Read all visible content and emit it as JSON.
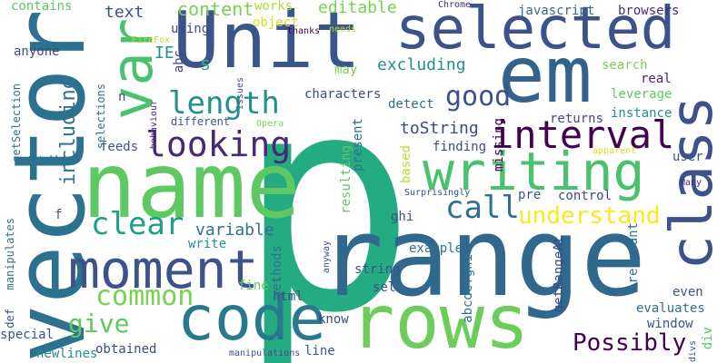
{
  "words": [
    {
      "text": "p",
      "color": "#25ab82"
    },
    {
      "text": "range",
      "color": "#31688e"
    },
    {
      "text": "Unit",
      "color": "#3a548c"
    },
    {
      "text": "selected",
      "color": "#3b528b"
    },
    {
      "text": "em",
      "color": "#33638d"
    },
    {
      "text": "vector",
      "color": "#2c728e"
    },
    {
      "text": "name",
      "color": "#5ec962"
    },
    {
      "text": "rows",
      "color": "#6ccd5a"
    },
    {
      "text": "code",
      "color": "#2a788e"
    },
    {
      "text": "writing",
      "color": "#4ac16d"
    },
    {
      "text": "class",
      "color": "#3b528b"
    },
    {
      "text": "moment",
      "color": "#3b528b"
    },
    {
      "text": "var",
      "color": "#4ac16d"
    },
    {
      "text": "looking",
      "color": "#482878"
    },
    {
      "text": "interval",
      "color": "#440154"
    },
    {
      "text": "length",
      "color": "#21918c"
    },
    {
      "text": "good",
      "color": "#3b528b"
    },
    {
      "text": "call",
      "color": "#2c728e"
    },
    {
      "text": "clear",
      "color": "#1f9e89"
    },
    {
      "text": "common",
      "color": "#7ad151"
    },
    {
      "text": "give",
      "color": "#5ec962"
    },
    {
      "text": "understand",
      "color": "#fde725"
    },
    {
      "text": "Possibly",
      "color": "#440154"
    },
    {
      "text": "excluding",
      "color": "#21918c"
    },
    {
      "text": "including",
      "color": "#2c728e"
    },
    {
      "text": "editable",
      "color": "#7ad151"
    },
    {
      "text": "content",
      "color": "#7ad151"
    },
    {
      "text": "text",
      "color": "#3b528b"
    },
    {
      "text": "variable",
      "color": "#2c728e"
    },
    {
      "text": "toString",
      "color": "#3e4989"
    },
    {
      "text": "javascript",
      "color": "#31688e"
    },
    {
      "text": "browsers",
      "color": "#472d7b"
    },
    {
      "text": "works",
      "color": "#addc30"
    },
    {
      "text": "contains",
      "color": "#5ec962"
    },
    {
      "text": "object",
      "color": "#d8e219"
    },
    {
      "text": "using",
      "color": "#3e4989"
    },
    {
      "text": "html",
      "color": "#3e4989"
    },
    {
      "text": "characters",
      "color": "#3e4989"
    },
    {
      "text": "detect",
      "color": "#2c728e"
    },
    {
      "text": "search",
      "color": "#7ad151"
    },
    {
      "text": "real",
      "color": "#481f70"
    },
    {
      "text": "leverage",
      "color": "#5ec962"
    },
    {
      "text": "instance",
      "color": "#21918c"
    },
    {
      "text": "returns",
      "color": "#3e4989"
    },
    {
      "text": "finding",
      "color": "#3e4989"
    },
    {
      "text": "user",
      "color": "#3b528b"
    },
    {
      "text": "feeds",
      "color": "#3b528b"
    },
    {
      "text": "pre",
      "color": "#3b528b"
    },
    {
      "text": "control",
      "color": "#3e4989"
    },
    {
      "text": "based",
      "color": "#b5de2b"
    },
    {
      "text": "present",
      "color": "#2c728e"
    },
    {
      "text": "resulting",
      "color": "#5ec962"
    },
    {
      "text": "missing",
      "color": "#440154"
    },
    {
      "text": "getRangeAt",
      "color": "#3e4989"
    },
    {
      "text": "relevant",
      "color": "#2c728e"
    },
    {
      "text": "abcdefghi",
      "color": "#2c728e"
    },
    {
      "text": "ghi",
      "color": "#3b528b"
    },
    {
      "text": "example",
      "color": "#2c728e"
    },
    {
      "text": "string",
      "color": "#3b528b"
    },
    {
      "text": "methods",
      "color": "#2c728e"
    },
    {
      "text": "sel",
      "color": "#3b528b"
    },
    {
      "text": "fine",
      "color": "#5ec962"
    },
    {
      "text": "write",
      "color": "#21918c"
    },
    {
      "text": "special",
      "color": "#3b528b"
    },
    {
      "text": "newlines",
      "color": "#21918c"
    },
    {
      "text": "obtained",
      "color": "#3e4989"
    },
    {
      "text": "line",
      "color": "#3b528b"
    },
    {
      "text": "know",
      "color": "#3e4989"
    },
    {
      "text": "window",
      "color": "#3b528b"
    },
    {
      "text": "evaluates",
      "color": "#2c728e"
    },
    {
      "text": "even",
      "color": "#3b528b"
    },
    {
      "text": "div",
      "color": "#5ec962"
    },
    {
      "text": "IE",
      "color": "#21918c"
    },
    {
      "text": "abc",
      "color": "#3e4989"
    },
    {
      "text": "s",
      "color": "#35b779"
    },
    {
      "text": "n",
      "color": "#3e4989"
    },
    {
      "text": "f",
      "color": "#3b528b"
    },
    {
      "text": "anyone",
      "color": "#3e4989"
    },
    {
      "text": "getSelection",
      "color": "#2c728e"
    },
    {
      "text": "selections",
      "color": "#2c728e"
    },
    {
      "text": "issues",
      "color": "#3e4989"
    },
    {
      "text": "different",
      "color": "#3b528b"
    },
    {
      "text": "behaviour",
      "color": "#482878"
    },
    {
      "text": "Opera",
      "color": "#7ad151"
    },
    {
      "text": "FireFox",
      "color": "#b5de2b"
    },
    {
      "text": "thanks",
      "color": "#440154"
    },
    {
      "text": "needs",
      "color": "#b5de2b"
    },
    {
      "text": "may",
      "color": "#7ad151"
    },
    {
      "text": "Chrome",
      "color": "#472d7b"
    },
    {
      "text": "apparent",
      "color": "#d8e219"
    },
    {
      "text": "totally",
      "color": "#2c728e"
    },
    {
      "text": "Surprisingly",
      "color": "#3e4989"
    },
    {
      "text": "Many",
      "color": "#482878"
    },
    {
      "text": "anyway",
      "color": "#3b528b"
    },
    {
      "text": "def",
      "color": "#3b528b"
    },
    {
      "text": "manipulates",
      "color": "#2c728e"
    },
    {
      "text": "manipulations",
      "color": "#3b528b"
    },
    {
      "text": "divs",
      "color": "#3b528b"
    }
  ]
}
